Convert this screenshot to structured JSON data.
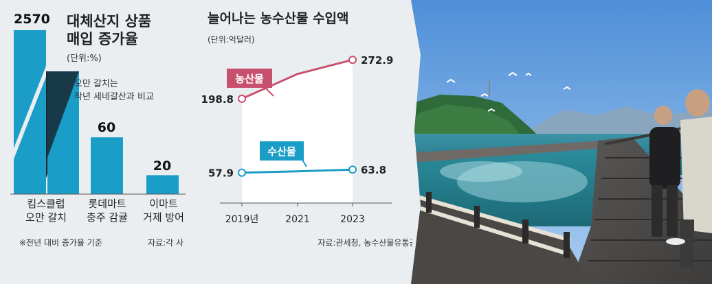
{
  "chart_data": [
    {
      "type": "bar",
      "title": "대체산지 상품 매입 증가율",
      "title_lines": [
        "대체산지 상품",
        "매입 증가율"
      ],
      "unit": "(단위:%)",
      "categories": [
        "킴스클럽 오만 갈치",
        "롯데마트 충주 감귤",
        "이마트 거제 방어"
      ],
      "category_lines": [
        [
          "킴스클럽",
          "오만 갈치"
        ],
        [
          "롯데마트",
          "충주 감귤"
        ],
        [
          "이마트",
          "거제 방어"
        ]
      ],
      "values": [
        2570,
        60,
        20
      ],
      "value_labels": [
        "2570",
        "60",
        "20"
      ],
      "annotation": [
        "오만 갈치는",
        "작년 세네갈산과 비교"
      ],
      "footnote": "※전년 대비 증가율 기준",
      "source": "자료:각 사",
      "bar_color": "#1a9dc6",
      "note": "first bar has a broken (cut) axis"
    },
    {
      "type": "line",
      "title": "늘어나는 농수산물 수입액",
      "unit": "(단위:억달러)",
      "x": [
        "2019년",
        "2021",
        "2023"
      ],
      "series": [
        {
          "name": "농산물",
          "values": [
            198.8,
            246.0,
            272.9
          ],
          "labels": [
            "198.8",
            "",
            "272.9"
          ],
          "color": "#c8506f"
        },
        {
          "name": "수산물",
          "values": [
            57.9,
            60.5,
            63.8
          ],
          "labels": [
            "57.9",
            "",
            "63.8"
          ],
          "color": "#1a9dc6"
        }
      ],
      "area_fill": "#ffffff",
      "source": "자료:관세청, 농수산물유통공사"
    }
  ],
  "photo": {
    "description_icon": "fish-farm-photo"
  }
}
